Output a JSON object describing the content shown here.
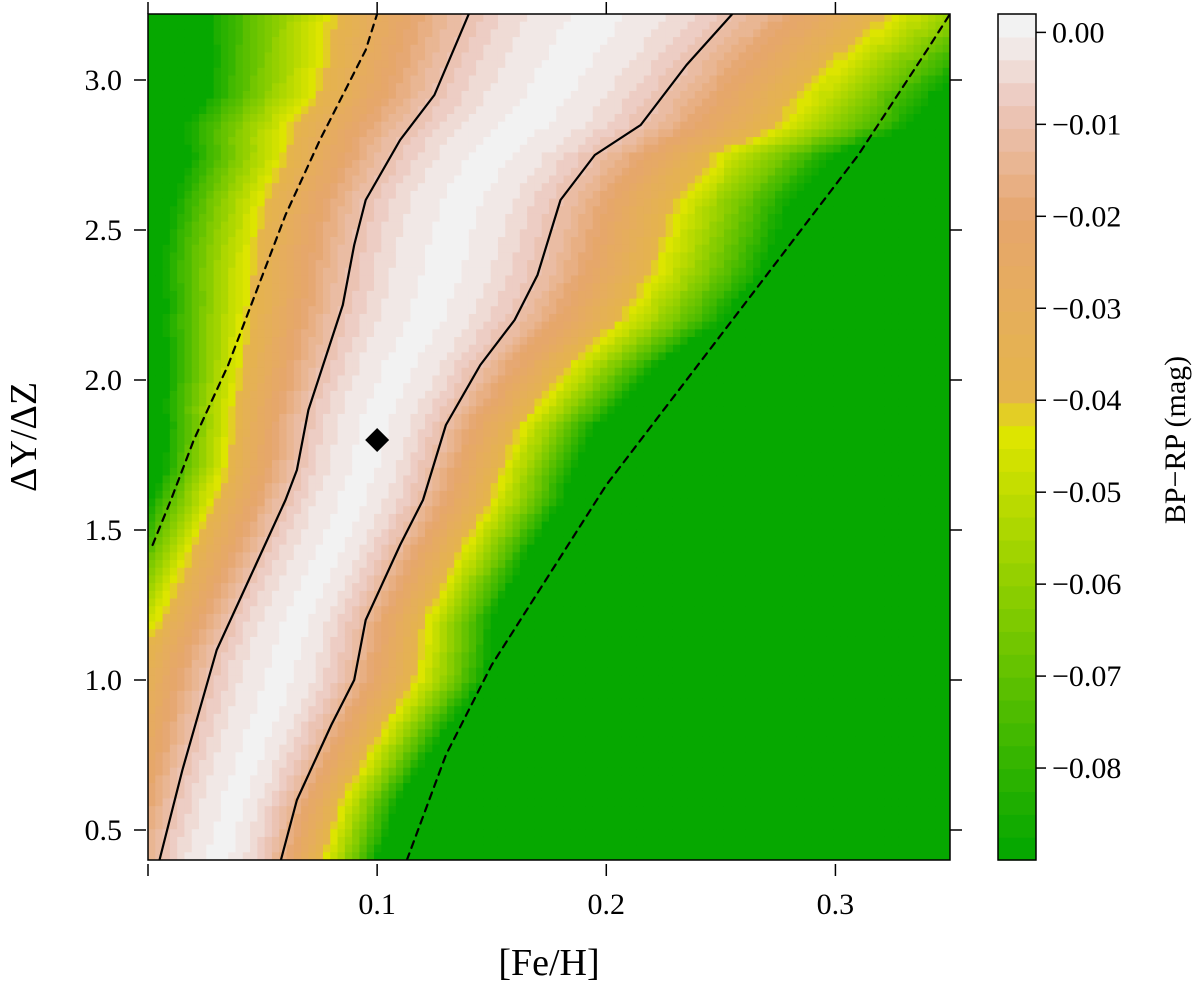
{
  "chart_data": {
    "type": "heatmap",
    "title": "",
    "xlabel": "[Fe/H]",
    "ylabel": "ΔY/ΔZ",
    "xlim": [
      0.0,
      0.35
    ],
    "ylim": [
      0.4,
      3.22
    ],
    "xticks": [
      0.1,
      0.2,
      0.3
    ],
    "xtick_labels": [
      "0.1",
      "0.2",
      "0.3"
    ],
    "yticks": [
      0.5,
      1.0,
      1.5,
      2.0,
      2.5,
      3.0
    ],
    "ytick_labels": [
      "0.5",
      "1.0",
      "1.5",
      "2.0",
      "2.5",
      "3.0"
    ],
    "z_label": "BP−RP (mag)",
    "z_range": [
      -0.09,
      0.002
    ],
    "colorbar_ticks": [
      0.0,
      -0.01,
      -0.02,
      -0.03,
      -0.04,
      -0.05,
      -0.06,
      -0.07,
      -0.08
    ],
    "colorbar_tick_labels": [
      "0.00",
      "−0.01",
      "−0.02",
      "−0.03",
      "−0.04",
      "−0.05",
      "−0.06",
      "−0.07",
      "−0.08"
    ],
    "colorbar_levels": 37,
    "colors": {
      "zero": "#f2f2f2",
      "small_negative": "#ecc6bb",
      "mid_negative": "#e6a66d",
      "orange": "#e5b54a",
      "yellow": "#e2e600",
      "green": "#00a600"
    },
    "contour_lines": [
      {
        "style": "solid",
        "color": "#000000",
        "level": -0.01,
        "side": "left",
        "points": [
          [
            0.005,
            0.4
          ],
          [
            0.015,
            0.7
          ],
          [
            0.03,
            1.1
          ],
          [
            0.045,
            1.35
          ],
          [
            0.06,
            1.6
          ],
          [
            0.065,
            1.7
          ],
          [
            0.07,
            1.9
          ],
          [
            0.085,
            2.25
          ],
          [
            0.09,
            2.45
          ],
          [
            0.095,
            2.6
          ],
          [
            0.11,
            2.8
          ],
          [
            0.125,
            2.95
          ],
          [
            0.14,
            3.22
          ]
        ]
      },
      {
        "style": "solid",
        "color": "#000000",
        "level": -0.01,
        "side": "right",
        "points": [
          [
            0.058,
            0.4
          ],
          [
            0.065,
            0.6
          ],
          [
            0.08,
            0.85
          ],
          [
            0.09,
            1.0
          ],
          [
            0.095,
            1.2
          ],
          [
            0.11,
            1.45
          ],
          [
            0.12,
            1.6
          ],
          [
            0.13,
            1.85
          ],
          [
            0.145,
            2.05
          ],
          [
            0.16,
            2.2
          ],
          [
            0.17,
            2.35
          ],
          [
            0.18,
            2.6
          ],
          [
            0.195,
            2.75
          ],
          [
            0.215,
            2.85
          ],
          [
            0.235,
            3.05
          ],
          [
            0.255,
            3.22
          ]
        ]
      },
      {
        "style": "dashed",
        "color": "#000000",
        "level": -0.02,
        "side": "left",
        "points": [
          [
            0.002,
            1.45
          ],
          [
            0.01,
            1.6
          ],
          [
            0.02,
            1.8
          ],
          [
            0.035,
            2.05
          ],
          [
            0.05,
            2.35
          ],
          [
            0.06,
            2.55
          ],
          [
            0.075,
            2.8
          ],
          [
            0.085,
            2.95
          ],
          [
            0.095,
            3.1
          ],
          [
            0.1,
            3.22
          ]
        ]
      },
      {
        "style": "dashed",
        "color": "#000000",
        "level": -0.02,
        "side": "right",
        "points": [
          [
            0.113,
            0.4
          ],
          [
            0.13,
            0.75
          ],
          [
            0.15,
            1.05
          ],
          [
            0.175,
            1.35
          ],
          [
            0.2,
            1.65
          ],
          [
            0.22,
            1.85
          ],
          [
            0.25,
            2.15
          ],
          [
            0.28,
            2.45
          ],
          [
            0.31,
            2.75
          ],
          [
            0.34,
            3.1
          ],
          [
            0.35,
            3.22
          ]
        ]
      }
    ],
    "marker": {
      "shape": "diamond",
      "color": "#000000",
      "x": 0.1,
      "y": 1.8
    }
  }
}
